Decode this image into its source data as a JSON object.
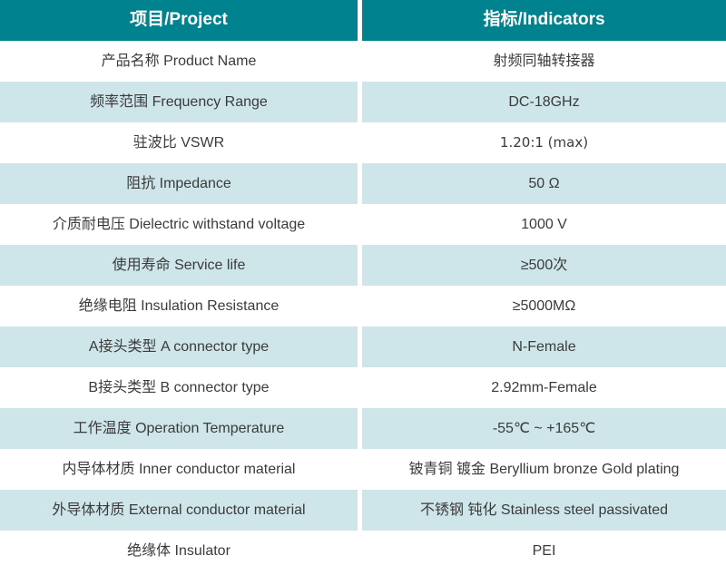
{
  "table": {
    "header": {
      "project": "项目/Project",
      "indicators": "指标/Indicators"
    },
    "rows": [
      {
        "label": "产品名称 Product Name",
        "value": "射频同轴转接器"
      },
      {
        "label": "频率范围 Frequency Range",
        "value": "DC-18GHz"
      },
      {
        "label": "驻波比 VSWR",
        "value": "1.20:1 (max)"
      },
      {
        "label": "阻抗 Impedance",
        "value": "50 Ω"
      },
      {
        "label": "介质耐电压 Dielectric withstand voltage",
        "value": "1000 V"
      },
      {
        "label": "使用寿命 Service life",
        "value": "≥500次"
      },
      {
        "label": "绝缘电阻 Insulation Resistance",
        "value": "≥5000MΩ"
      },
      {
        "label": "A接头类型 A connector type",
        "value": "N-Female"
      },
      {
        "label": "B接头类型 B connector type",
        "value": "2.92mm-Female"
      },
      {
        "label": "工作温度 Operation Temperature",
        "value": "-55℃ ~ +165℃"
      },
      {
        "label": "内导体材质 Inner conductor material",
        "value": "铍青铜 镀金 Beryllium bronze Gold plating"
      },
      {
        "label": "外导体材质 External conductor material",
        "value": "不锈钢 钝化 Stainless steel passivated"
      },
      {
        "label": "绝缘体 Insulator",
        "value": "PEI"
      }
    ],
    "colors": {
      "header_bg": "#00838F",
      "header_text": "#FFFFFF",
      "stripe_bg": "#CEE5E9",
      "body_text": "#3B3B3B"
    }
  }
}
